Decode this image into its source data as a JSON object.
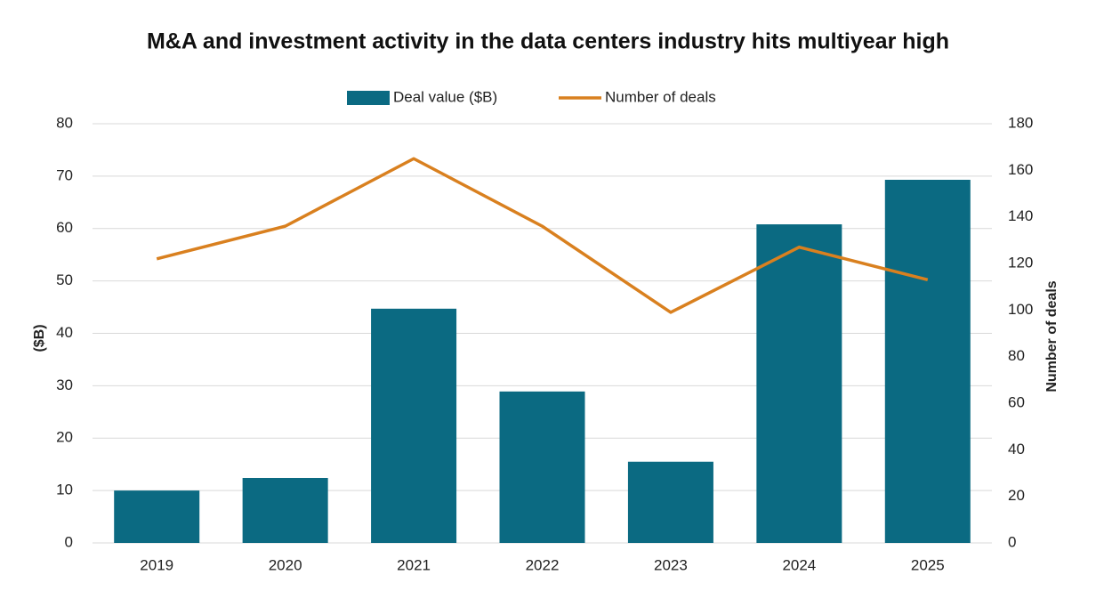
{
  "chart_data": {
    "type": "bar",
    "title": "M&A and investment activity in the data centers industry hits multiyear high",
    "categories": [
      "2019",
      "2020",
      "2021",
      "2022",
      "2023",
      "2024",
      "2025"
    ],
    "series": [
      {
        "name": "Deal value ($B)",
        "type": "bar",
        "color": "#0b6a82",
        "values": [
          10,
          12.4,
          44.7,
          28.9,
          15.5,
          60.8,
          69.3
        ]
      },
      {
        "name": "Number of deals",
        "type": "line",
        "axis": "y2",
        "color": "#d9801f",
        "values": [
          122,
          136,
          165,
          136,
          99,
          127,
          113
        ]
      }
    ],
    "ylabel": "($B)",
    "y2label": "Number of deals",
    "ylim": [
      0,
      80
    ],
    "yticks": [
      0,
      10,
      20,
      30,
      40,
      50,
      60,
      70,
      80
    ],
    "y2lim": [
      0,
      180
    ],
    "y2ticks": [
      0,
      20,
      40,
      60,
      80,
      100,
      120,
      140,
      160,
      180
    ],
    "grid": true,
    "legend": "top"
  }
}
